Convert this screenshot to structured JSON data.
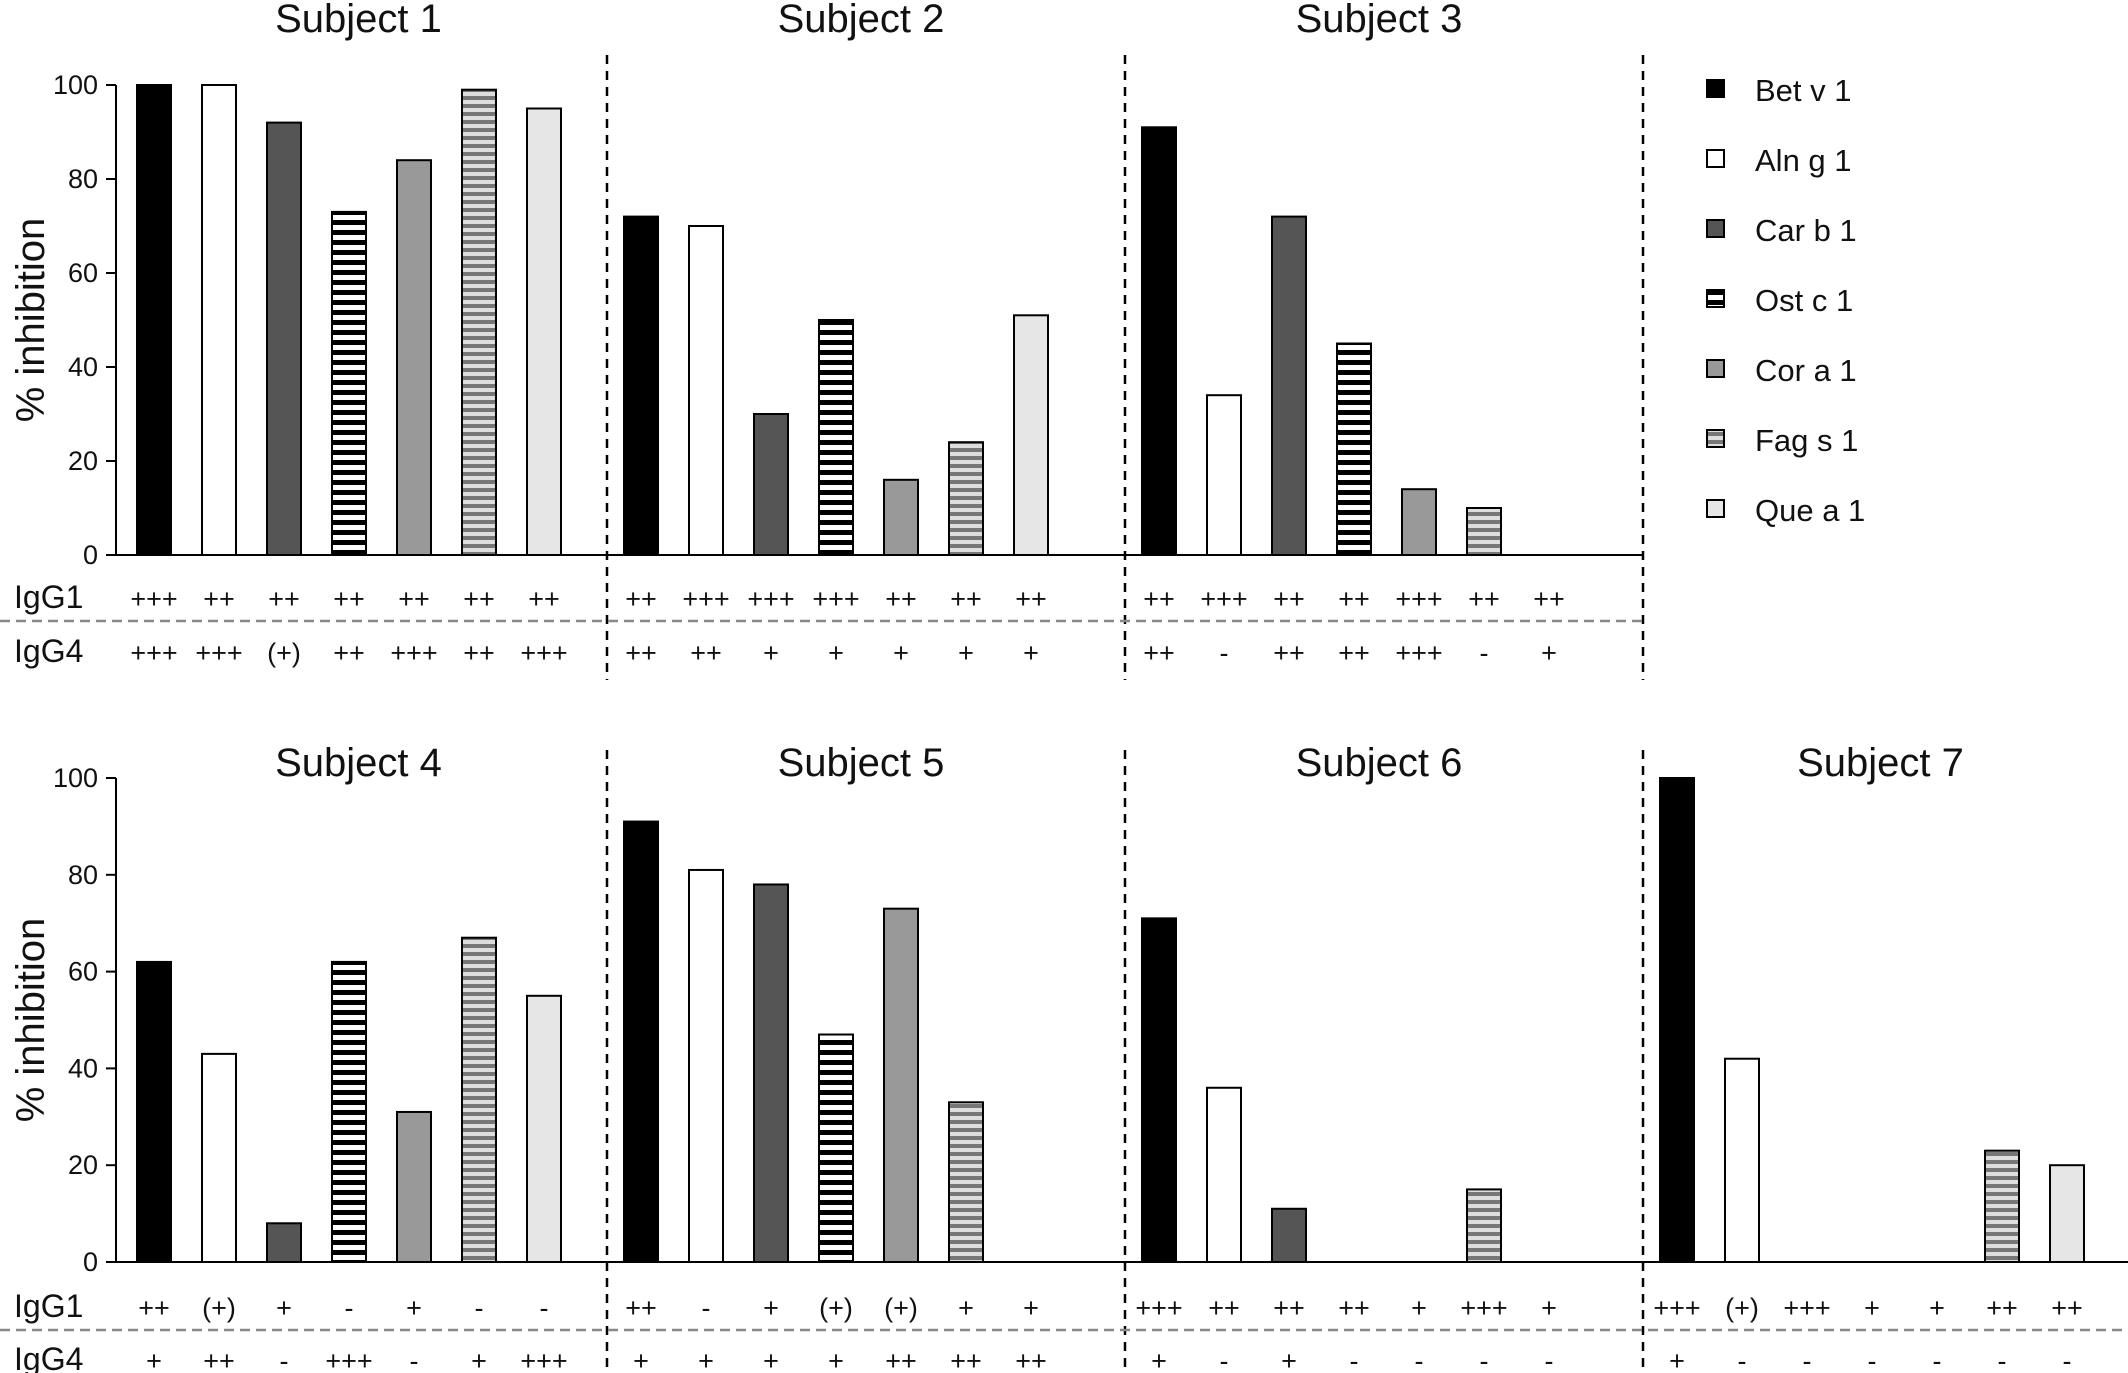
{
  "chart_data": {
    "type": "bar",
    "ylabel": "% inhibition",
    "ylim": [
      0,
      100
    ],
    "yticks": [
      "0",
      "20",
      "40",
      "60",
      "80",
      "100"
    ],
    "categories": [
      "Bet v 1",
      "Aln g 1",
      "Car b 1",
      "Ost c 1",
      "Cor a 1",
      "Fag s 1",
      "Que a 1"
    ],
    "legend": {
      "placement": "top-right",
      "entries": [
        {
          "label": "Bet v 1",
          "color": "#000000",
          "pattern": "solid"
        },
        {
          "label": "Aln g 1",
          "color": "#ffffff",
          "pattern": "solid"
        },
        {
          "label": "Car b 1",
          "color": "#555555",
          "pattern": "solid"
        },
        {
          "label": "Ost c 1",
          "color": "#000000",
          "pattern": "stripes-bw"
        },
        {
          "label": "Cor a 1",
          "color": "#999999",
          "pattern": "solid"
        },
        {
          "label": "Fag s 1",
          "color": "#777777",
          "pattern": "stripes-gray"
        },
        {
          "label": "Que a 1",
          "color": "#e6e6e6",
          "pattern": "solid"
        }
      ]
    },
    "row_labels": [
      "IgG1",
      "IgG4"
    ],
    "subjects": [
      {
        "title": "Subject 1",
        "values": [
          100,
          100,
          92,
          73,
          84,
          99,
          95
        ],
        "igg1": [
          "+++",
          "++",
          "++",
          "++",
          "++",
          "++",
          "++"
        ],
        "igg4": [
          "+++",
          "+++",
          "(+)",
          "++",
          "+++",
          "++",
          "+++"
        ]
      },
      {
        "title": "Subject 2",
        "values": [
          72,
          70,
          30,
          50,
          16,
          24,
          51
        ],
        "igg1": [
          "++",
          "+++",
          "+++",
          "+++",
          "++",
          "++",
          "++"
        ],
        "igg4": [
          "++",
          "++",
          "+",
          "+",
          "+",
          "+",
          "+"
        ]
      },
      {
        "title": "Subject 3",
        "values": [
          91,
          34,
          72,
          45,
          14,
          10,
          0
        ],
        "igg1": [
          "++",
          "+++",
          "++",
          "++",
          "+++",
          "++",
          "++"
        ],
        "igg4": [
          "++",
          "-",
          "++",
          "++",
          "+++",
          "-",
          "+"
        ]
      },
      {
        "title": "Subject 4",
        "values": [
          62,
          43,
          8,
          62,
          31,
          67,
          55
        ],
        "igg1": [
          "++",
          "(+)",
          "+",
          "-",
          "+",
          "-",
          "-"
        ],
        "igg4": [
          "+",
          "++",
          "-",
          "+++",
          "-",
          "+",
          "+++"
        ]
      },
      {
        "title": "Subject 5",
        "values": [
          91,
          81,
          78,
          47,
          73,
          33,
          0
        ],
        "igg1": [
          "++",
          "-",
          "+",
          "(+)",
          "(+)",
          "+",
          "+"
        ],
        "igg4": [
          "+",
          "+",
          "+",
          "+",
          "++",
          "++",
          "++"
        ]
      },
      {
        "title": "Subject 6",
        "values": [
          71,
          36,
          11,
          0,
          0,
          15,
          0
        ],
        "igg1": [
          "+++",
          "++",
          "++",
          "++",
          "+",
          "+++",
          "+"
        ],
        "igg4": [
          "+",
          "-",
          "+",
          "-",
          "-",
          "-",
          "-"
        ]
      },
      {
        "title": "Subject 7",
        "values": [
          100,
          42,
          0,
          0,
          0,
          23,
          20
        ],
        "igg1": [
          "+++",
          "(+)",
          "+++",
          "+",
          "+",
          "++",
          "++"
        ],
        "igg4": [
          "+",
          "-",
          "-",
          "-",
          "-",
          "-",
          "-"
        ]
      }
    ]
  }
}
